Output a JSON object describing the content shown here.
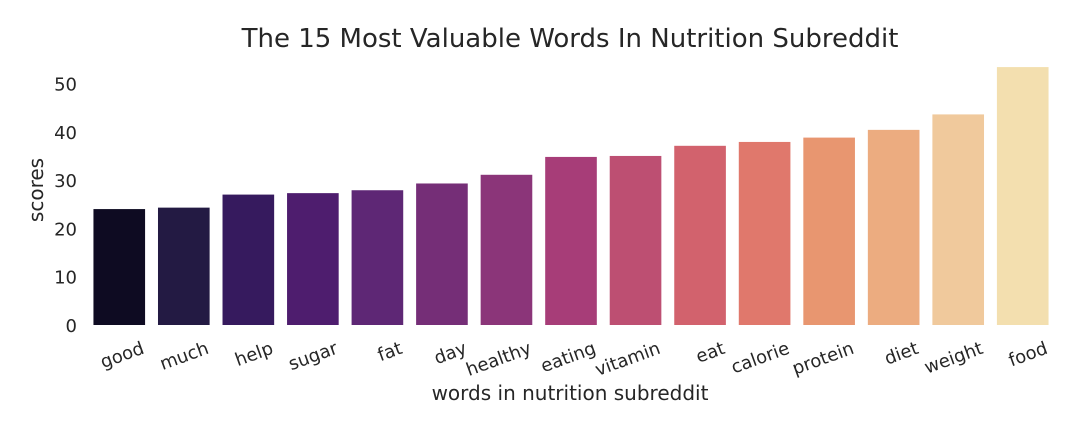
{
  "chart_data": {
    "type": "bar",
    "title": "The 15 Most Valuable Words In Nutrition Subreddit",
    "xlabel": "words in nutrition subreddit",
    "ylabel": "scores",
    "categories": [
      "good",
      "much",
      "help",
      "sugar",
      "fat",
      "day",
      "healthy",
      "eating",
      "vitamin",
      "eat",
      "calorie",
      "protein",
      "diet",
      "weight",
      "food"
    ],
    "values": [
      24.0,
      24.3,
      27.0,
      27.3,
      27.9,
      29.3,
      31.1,
      34.8,
      35.0,
      37.1,
      37.9,
      38.8,
      40.4,
      43.6,
      53.4
    ],
    "colors": [
      "#0e0b22",
      "#231a43",
      "#361a5e",
      "#4e1d6e",
      "#5e2775",
      "#752e77",
      "#8b3579",
      "#a73d78",
      "#bd4f72",
      "#d2626d",
      "#e0786c",
      "#e89670",
      "#ecac80",
      "#f0c99c",
      "#f3dfaf"
    ],
    "yticks": [
      "0",
      "10",
      "20",
      "30",
      "40",
      "50"
    ],
    "ylim": [
      0,
      54
    ],
    "grid": false,
    "legend": "none"
  }
}
